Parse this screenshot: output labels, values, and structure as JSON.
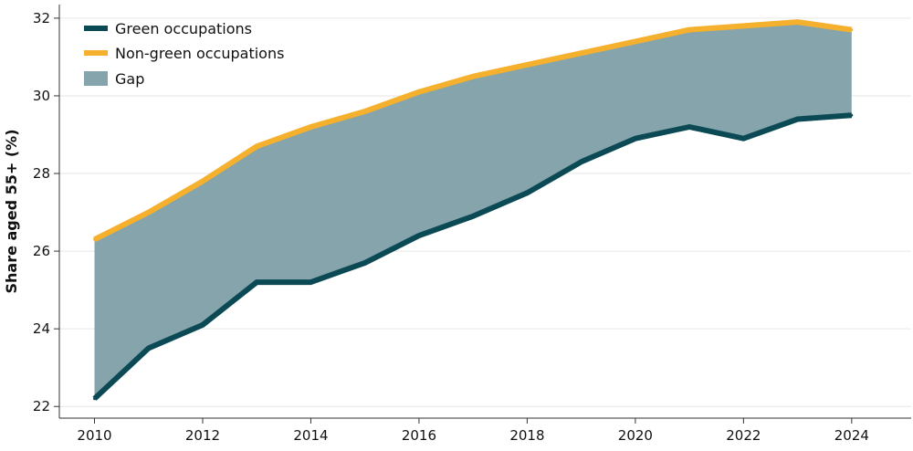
{
  "chart_data": {
    "type": "area",
    "title": "",
    "xlabel": "",
    "ylabel": "Share aged 55+ (%)",
    "x": [
      2010,
      2011,
      2012,
      2013,
      2014,
      2015,
      2016,
      2017,
      2018,
      2019,
      2020,
      2021,
      2022,
      2023,
      2024
    ],
    "x_ticks": [
      "2010",
      "2012",
      "2014",
      "2016",
      "2018",
      "2020",
      "2022",
      "2024"
    ],
    "y_ticks": [
      "22",
      "24",
      "26",
      "28",
      "30",
      "32"
    ],
    "xlim": [
      2009.35,
      2025.1
    ],
    "ylim": [
      21.7,
      32.35
    ],
    "grid": true,
    "legend_position": "top-left",
    "series": [
      {
        "name": "Green occupations",
        "color": "#0b4a55",
        "values": [
          22.2,
          23.5,
          24.1,
          25.2,
          25.2,
          25.7,
          26.4,
          26.9,
          27.5,
          28.3,
          28.9,
          29.2,
          28.9,
          29.4,
          29.5
        ]
      },
      {
        "name": "Non-green occupations",
        "color": "#f5b02e",
        "values": [
          26.3,
          27.0,
          27.8,
          28.7,
          29.2,
          29.6,
          30.1,
          30.5,
          30.8,
          31.1,
          31.4,
          31.7,
          31.8,
          31.9,
          31.7
        ]
      }
    ],
    "gap": {
      "name": "Gap",
      "color": "#85a4ab"
    }
  }
}
